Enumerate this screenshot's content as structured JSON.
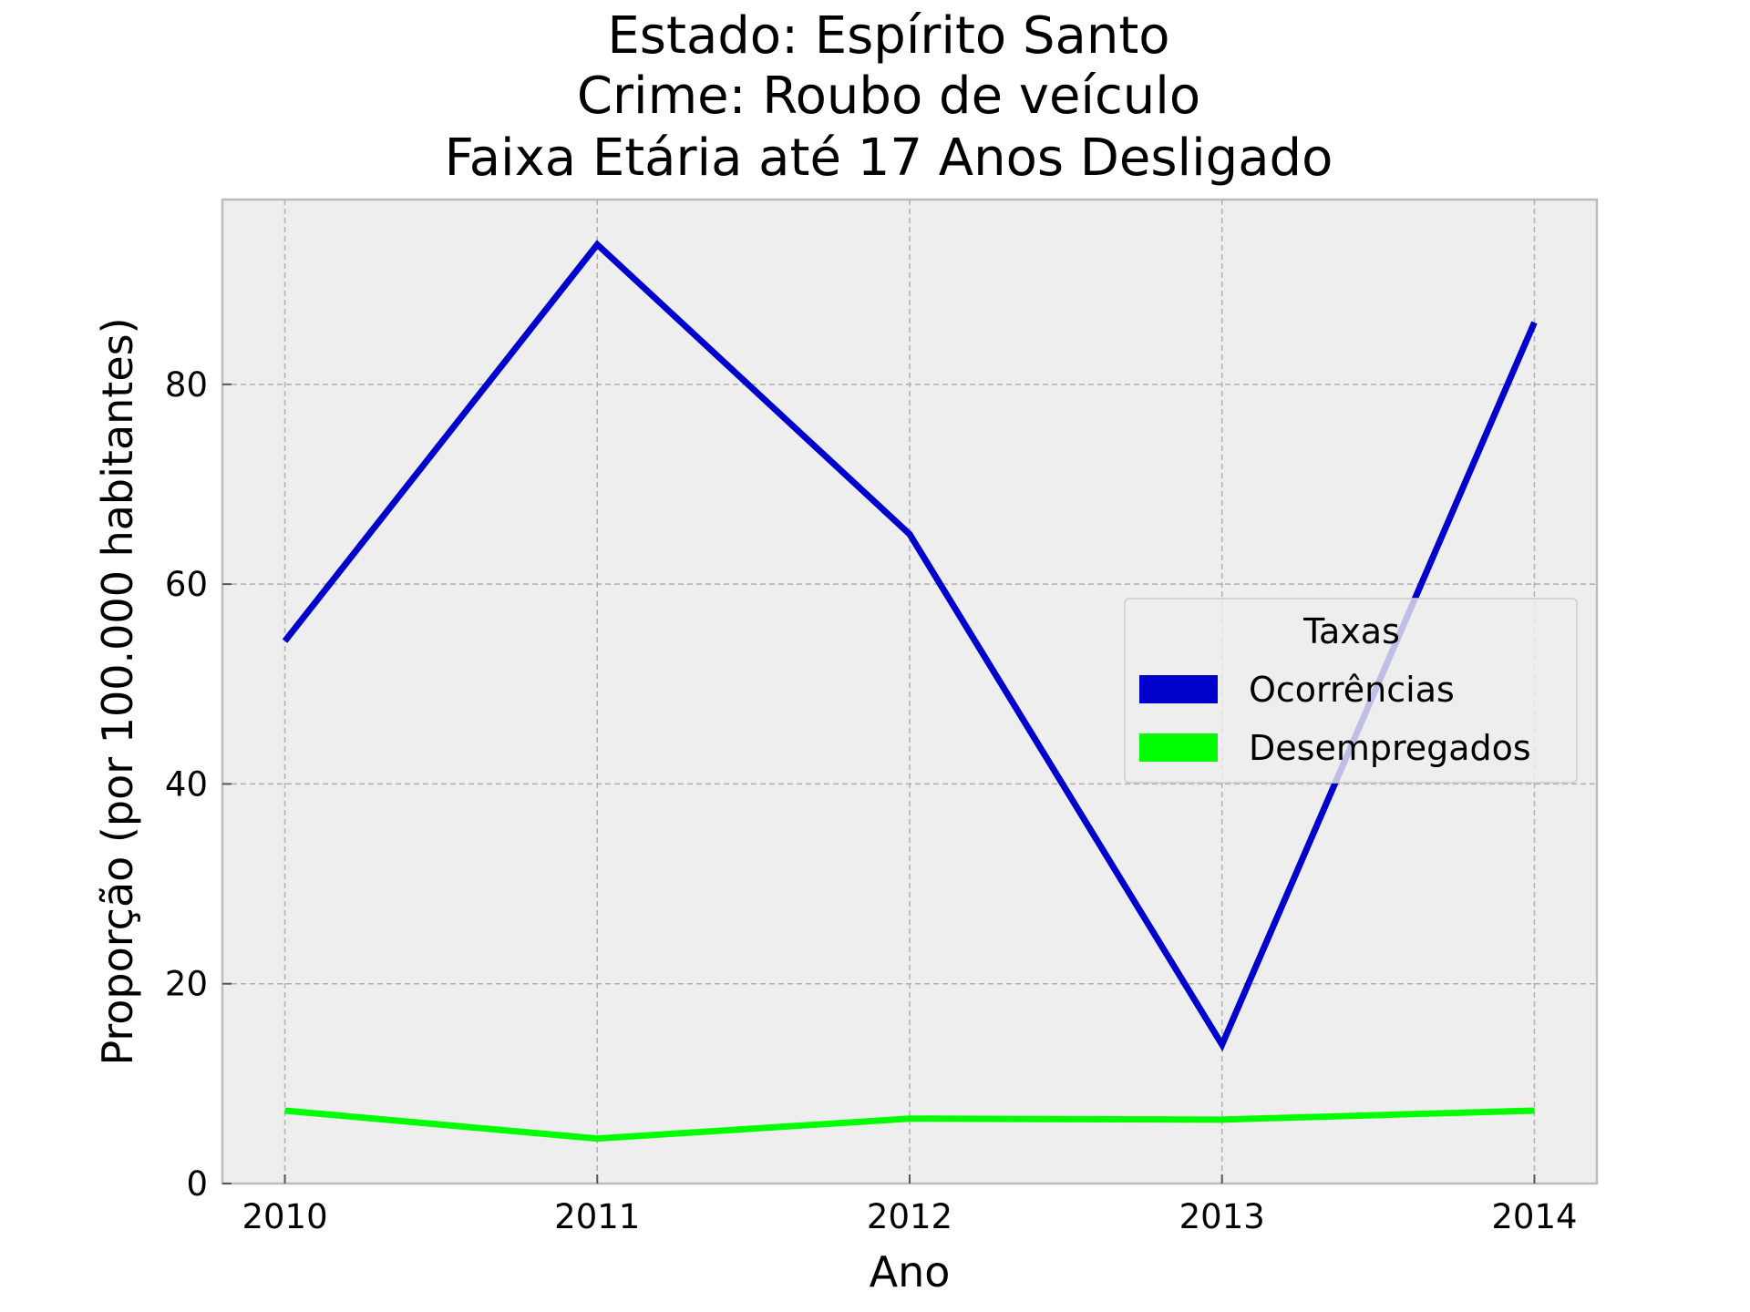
{
  "chart_data": {
    "type": "line",
    "title_lines": [
      "Estado: Espírito Santo",
      "Crime: Roubo de veículo",
      "Faixa Etária até 17 Anos   Desligado"
    ],
    "xlabel": "Ano",
    "ylabel": "Proporção (por 100.000 habitantes)",
    "x": [
      2010,
      2011,
      2012,
      2013,
      2014
    ],
    "x_tick_labels": [
      "2010",
      "2011",
      "2012",
      "2013",
      "2014"
    ],
    "xlim": [
      2009.8,
      2014.2
    ],
    "y_ticks": [
      0,
      20,
      40,
      60,
      80
    ],
    "y_tick_labels": [
      "0",
      "20",
      "40",
      "60",
      "80"
    ],
    "ylim": [
      0,
      98.5
    ],
    "grid": true,
    "legend": {
      "title": "Taxas",
      "placement": "center-right"
    },
    "series": [
      {
        "name": "Ocorrências",
        "color": "#0000cc",
        "values": [
          54.3,
          94.0,
          65.0,
          13.9,
          86.2
        ]
      },
      {
        "name": "Desempregados",
        "color": "#00ff00",
        "values": [
          7.3,
          4.5,
          6.5,
          6.4,
          7.3
        ]
      }
    ]
  }
}
